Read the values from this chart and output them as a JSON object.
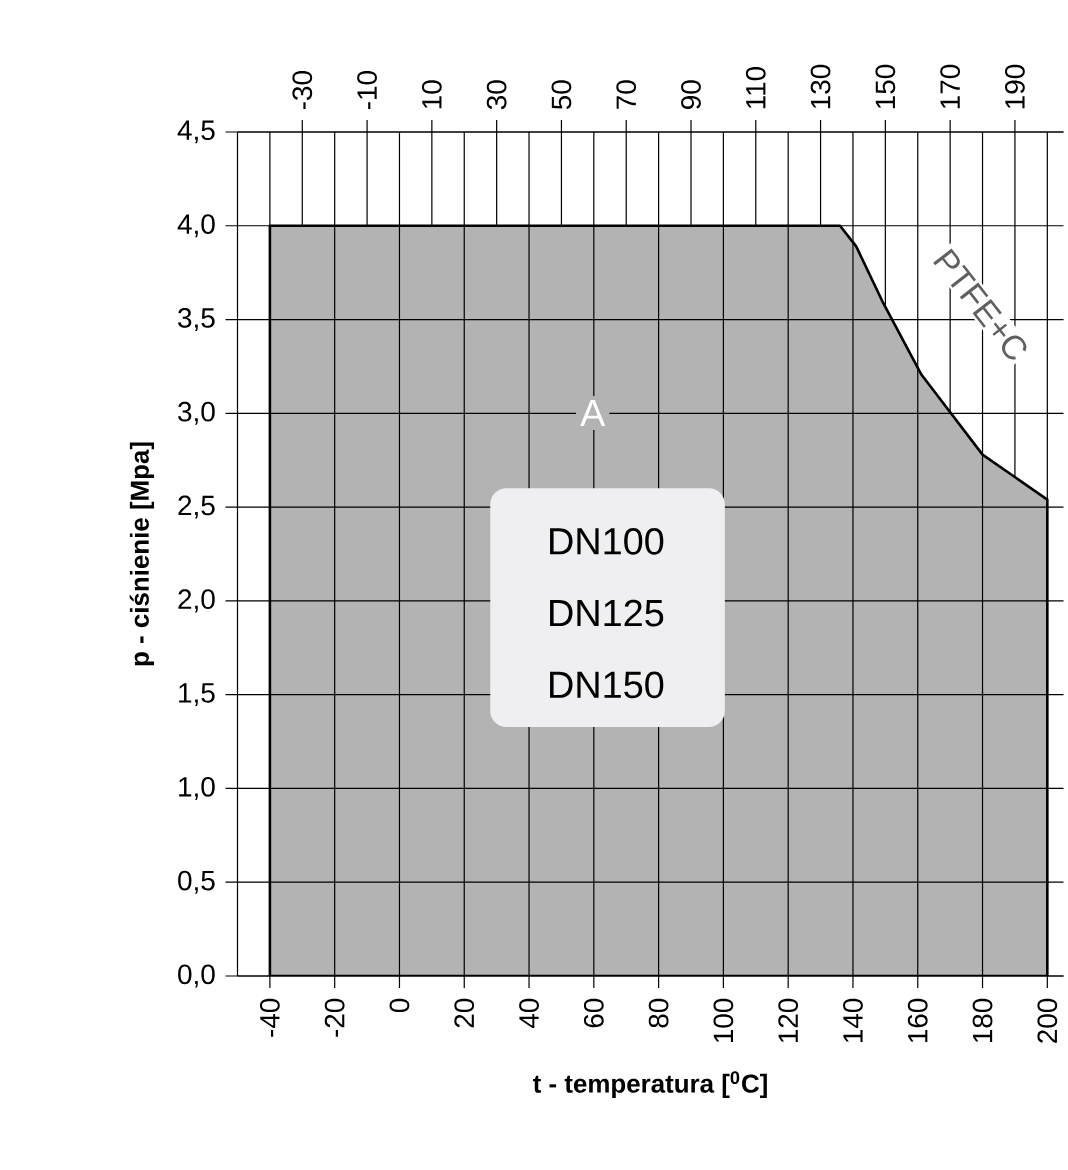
{
  "chart_data": {
    "type": "area",
    "xlabel": "t - temperatura [$^{0}$C]",
    "ylabel": "p - ciśnienie [Mpa]",
    "x": [
      -40,
      136,
      141,
      149,
      161,
      180,
      200
    ],
    "values": [
      4.0,
      4.0,
      3.89,
      3.6,
      3.21,
      2.78,
      2.54
    ],
    "color": "#b3b3b3",
    "xlim": [
      -50,
      205
    ],
    "ylim": [
      0,
      4.5
    ],
    "xticks": [
      -40,
      -20,
      0,
      20,
      40,
      60,
      80,
      100,
      120,
      140,
      160,
      180,
      200
    ],
    "x2lim": [
      -50,
      205
    ],
    "x2ticks": [
      -30,
      -10,
      10,
      30,
      50,
      70,
      90,
      110,
      130,
      150,
      170,
      190
    ],
    "yticks": [
      {
        "value": 0,
        "label": "0,0"
      },
      {
        "value": 0.5,
        "label": "0,5"
      },
      {
        "value": 1,
        "label": "1,0"
      },
      {
        "value": 1.5,
        "label": "1,5"
      },
      {
        "value": 2,
        "label": "2,0"
      },
      {
        "value": 2.5,
        "label": "2,5"
      },
      {
        "value": 3,
        "label": "3,0"
      },
      {
        "value": 3.5,
        "label": "3,5"
      },
      {
        "value": 4,
        "label": "4,0"
      },
      {
        "value": 4.5,
        "label": "4,5"
      }
    ],
    "grid": true,
    "annotations": [
      "A",
      "DN100",
      "DN125",
      "DN150",
      "PTFE+C"
    ]
  }
}
